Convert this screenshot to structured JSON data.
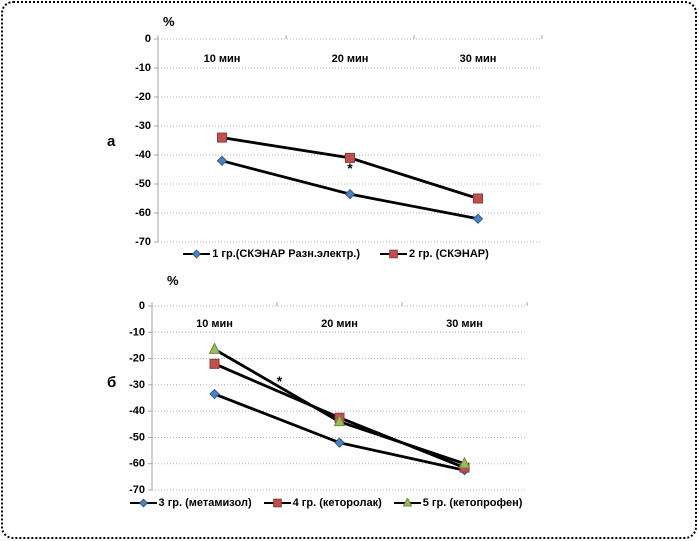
{
  "figure": {
    "background": "#ffffff",
    "border_color": "#000000",
    "grid_color": "#b3b3b3",
    "axis_color": "#a6a6a6",
    "line_color": "#000000"
  },
  "chart_data": [
    {
      "type": "line",
      "side_label": "а",
      "unit_label": "%",
      "categories": [
        "10 мин",
        "20 мин",
        "30 мин"
      ],
      "yticks": [
        0,
        -10,
        -20,
        -30,
        -40,
        -50,
        -60,
        -70
      ],
      "ylim": [
        0,
        -70
      ],
      "grid": true,
      "legend_position": "bottom",
      "series": [
        {
          "name": "1 гр.(СКЭНАР Разн.электр.)",
          "marker": "diamond",
          "color": "#4F81BD",
          "edge": "#2E5B8F",
          "values": [
            -42,
            -53.5,
            -62
          ]
        },
        {
          "name": "2 гр. (СКЭНАР)",
          "marker": "square",
          "color": "#C0504D",
          "edge": "#8E3B38",
          "values": [
            -34,
            -41,
            -55
          ]
        }
      ],
      "annotations": [
        {
          "text": "*",
          "x_index": 1,
          "value": -44.5
        }
      ]
    },
    {
      "type": "line",
      "side_label": "б",
      "unit_label": "%",
      "categories": [
        "10 мин",
        "20 мин",
        "30 мин"
      ],
      "yticks": [
        0,
        -10,
        -20,
        -30,
        -40,
        -50,
        -60,
        -70
      ],
      "ylim": [
        0,
        -70
      ],
      "grid": true,
      "legend_position": "bottom",
      "series": [
        {
          "name": "3 гр. (метамизол)",
          "marker": "diamond",
          "color": "#4F81BD",
          "edge": "#2E5B8F",
          "values": [
            -33.5,
            -52,
            -62.5
          ]
        },
        {
          "name": "4 гр. (кеторолак)",
          "marker": "square",
          "color": "#C0504D",
          "edge": "#8E3B38",
          "values": [
            -22,
            -42.5,
            -61.5
          ]
        },
        {
          "name": "5 гр. (кетопрофен)",
          "marker": "triangle",
          "color": "#9BBB59",
          "edge": "#71893F",
          "values": [
            -16.5,
            -44,
            -60
          ]
        }
      ],
      "annotations": [
        {
          "text": "*",
          "x_index": 0.52,
          "value": -28.5
        }
      ]
    }
  ]
}
